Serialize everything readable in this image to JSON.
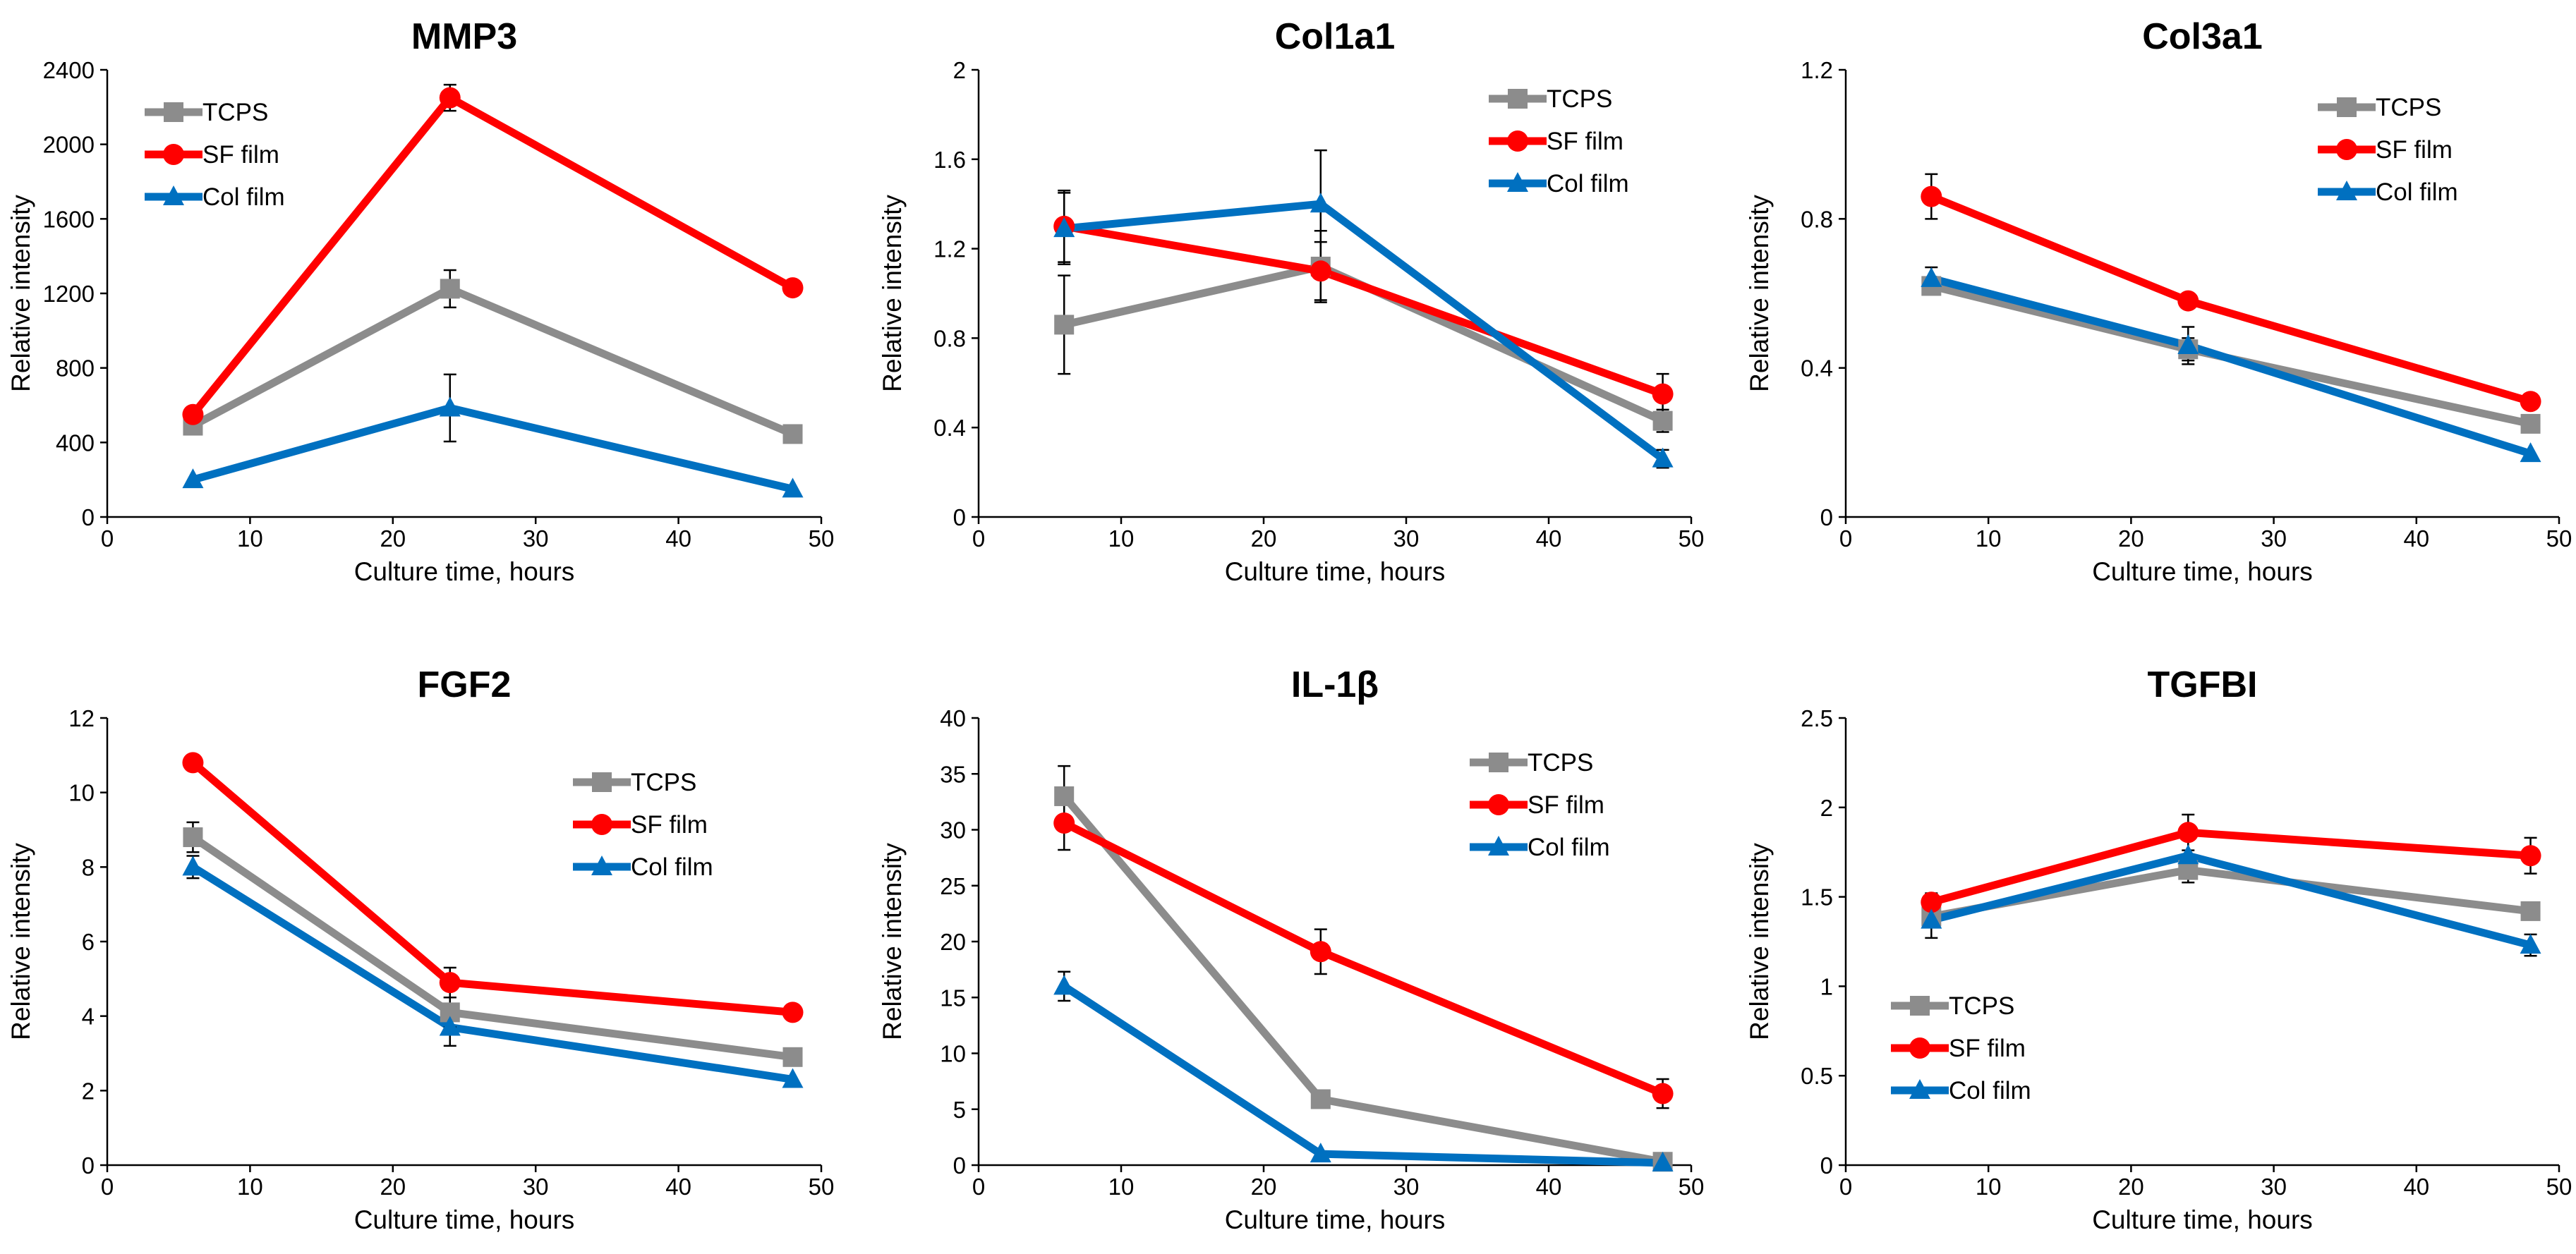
{
  "colors": {
    "TCPS": "#8c8c8c",
    "SF film": "#ff0000",
    "Col film": "#0070c0",
    "axis": "#000000",
    "errorbar": "#000000"
  },
  "chart_data": [
    {
      "type": "line",
      "title": "MMP3",
      "xlabel": "Culture time, hours",
      "ylabel": "Relative intensity",
      "x": [
        6,
        24,
        48
      ],
      "xlim": [
        0,
        50
      ],
      "xticks": [
        0,
        10,
        20,
        30,
        40,
        50
      ],
      "ylim": [
        0,
        2400
      ],
      "yticks": [
        0,
        400,
        800,
        1200,
        1600,
        2000,
        2400
      ],
      "ytick_labels": [
        "0",
        "400",
        "800",
        "1200",
        "1600",
        "2000",
        "2400"
      ],
      "grid": false,
      "legend_position": "top-left",
      "series": [
        {
          "name": "TCPS",
          "marker": "square",
          "values": [
            490,
            1225,
            445
          ],
          "errors": [
            0,
            100,
            0
          ]
        },
        {
          "name": "SF film",
          "marker": "circle",
          "values": [
            550,
            2250,
            1230
          ],
          "errors": [
            0,
            70,
            0
          ]
        },
        {
          "name": "Col film",
          "marker": "triangle",
          "values": [
            200,
            585,
            150
          ],
          "errors": [
            0,
            180,
            0
          ]
        }
      ]
    },
    {
      "type": "line",
      "title": "Col1a1",
      "xlabel": "Culture time, hours",
      "ylabel": "Relative intensity",
      "x": [
        6,
        24,
        48
      ],
      "xlim": [
        0,
        50
      ],
      "xticks": [
        0,
        10,
        20,
        30,
        40,
        50
      ],
      "ylim": [
        0,
        2
      ],
      "yticks": [
        0,
        0.4,
        0.8,
        1.2,
        1.6,
        2
      ],
      "ytick_labels": [
        "0",
        "0.4",
        "0.8",
        "1.2",
        "1.6",
        "2"
      ],
      "grid": false,
      "legend_position": "top-right",
      "series": [
        {
          "name": "TCPS",
          "marker": "square",
          "values": [
            0.86,
            1.12,
            0.43
          ],
          "errors": [
            0.22,
            0.16,
            0.05
          ]
        },
        {
          "name": "SF film",
          "marker": "circle",
          "values": [
            1.3,
            1.1,
            0.55
          ],
          "errors": [
            0.16,
            0.13,
            0.09
          ]
        },
        {
          "name": "Col film",
          "marker": "triangle",
          "values": [
            1.29,
            1.4,
            0.26
          ],
          "errors": [
            0.16,
            0.24,
            0.04
          ]
        }
      ]
    },
    {
      "type": "line",
      "title": "Col3a1",
      "xlabel": "Culture time, hours",
      "ylabel": "Relative intensity",
      "x": [
        6,
        24,
        48
      ],
      "xlim": [
        0,
        50
      ],
      "xticks": [
        0,
        10,
        20,
        30,
        40,
        50
      ],
      "ylim": [
        0,
        1.2
      ],
      "yticks": [
        0,
        0.4,
        0.8,
        1.2
      ],
      "ytick_labels": [
        "0",
        "0.4",
        "0.8",
        "1.2"
      ],
      "grid": false,
      "legend_position": "top-right",
      "series": [
        {
          "name": "TCPS",
          "marker": "square",
          "values": [
            0.62,
            0.45,
            0.25
          ],
          "errors": [
            0.02,
            0.03,
            0.0
          ]
        },
        {
          "name": "SF film",
          "marker": "circle",
          "values": [
            0.86,
            0.58,
            0.31
          ],
          "errors": [
            0.06,
            0.0,
            0.0
          ]
        },
        {
          "name": "Col film",
          "marker": "triangle",
          "values": [
            0.64,
            0.46,
            0.17
          ],
          "errors": [
            0.03,
            0.05,
            0.0
          ]
        }
      ]
    },
    {
      "type": "line",
      "title": "FGF2",
      "xlabel": "Culture time, hours",
      "ylabel": "Relative intensity",
      "x": [
        6,
        24,
        48
      ],
      "xlim": [
        0,
        50
      ],
      "xticks": [
        0,
        10,
        20,
        30,
        40,
        50
      ],
      "ylim": [
        0,
        12
      ],
      "yticks": [
        0,
        2,
        4,
        6,
        8,
        10,
        12
      ],
      "ytick_labels": [
        "0",
        "2",
        "4",
        "6",
        "8",
        "10",
        "12"
      ],
      "grid": false,
      "legend_position": "top-right",
      "series": [
        {
          "name": "TCPS",
          "marker": "square",
          "values": [
            8.8,
            4.1,
            2.9
          ],
          "errors": [
            0.4,
            0.4,
            0.0
          ]
        },
        {
          "name": "SF film",
          "marker": "circle",
          "values": [
            10.8,
            4.9,
            4.1
          ],
          "errors": [
            0.0,
            0.4,
            0.2
          ]
        },
        {
          "name": "Col film",
          "marker": "triangle",
          "values": [
            8.0,
            3.7,
            2.3
          ],
          "errors": [
            0.3,
            0.5,
            0.0
          ]
        }
      ]
    },
    {
      "type": "line",
      "title": "IL-1β",
      "xlabel": "Culture time, hours",
      "ylabel": "Relative intensity",
      "x": [
        6,
        24,
        48
      ],
      "xlim": [
        0,
        50
      ],
      "xticks": [
        0,
        10,
        20,
        30,
        40,
        50
      ],
      "ylim": [
        0,
        40
      ],
      "yticks": [
        0,
        5,
        10,
        15,
        20,
        25,
        30,
        35,
        40
      ],
      "ytick_labels": [
        "0",
        "5",
        "10",
        "15",
        "20",
        "25",
        "30",
        "35",
        "40"
      ],
      "grid": false,
      "legend_position": "top-right",
      "series": [
        {
          "name": "TCPS",
          "marker": "square",
          "values": [
            33.0,
            5.9,
            0.3
          ],
          "errors": [
            2.7,
            0.3,
            0.0
          ]
        },
        {
          "name": "SF film",
          "marker": "circle",
          "values": [
            30.6,
            19.1,
            6.4
          ],
          "errors": [
            2.4,
            2.0,
            1.3
          ]
        },
        {
          "name": "Col film",
          "marker": "triangle",
          "values": [
            16.0,
            1.0,
            0.2
          ],
          "errors": [
            1.3,
            0.0,
            0.0
          ]
        }
      ]
    },
    {
      "type": "line",
      "title": "TGFBI",
      "xlabel": "Culture time, hours",
      "ylabel": "Relative intensity",
      "x": [
        6,
        24,
        48
      ],
      "xlim": [
        0,
        50
      ],
      "xticks": [
        0,
        10,
        20,
        30,
        40,
        50
      ],
      "ylim": [
        0,
        2.5
      ],
      "yticks": [
        0,
        0.5,
        1,
        1.5,
        2,
        2.5
      ],
      "ytick_labels": [
        "0",
        "0.5",
        "1",
        "1.5",
        "2",
        "2.5"
      ],
      "grid": false,
      "legend_position": "bottom-left",
      "series": [
        {
          "name": "TCPS",
          "marker": "square",
          "values": [
            1.39,
            1.65,
            1.42
          ],
          "errors": [
            0.06,
            0.07,
            0.0
          ]
        },
        {
          "name": "SF film",
          "marker": "circle",
          "values": [
            1.47,
            1.86,
            1.73
          ],
          "errors": [
            0.05,
            0.1,
            0.1
          ]
        },
        {
          "name": "Col film",
          "marker": "triangle",
          "values": [
            1.37,
            1.73,
            1.23
          ],
          "errors": [
            0.1,
            0.1,
            0.06
          ]
        }
      ]
    }
  ]
}
